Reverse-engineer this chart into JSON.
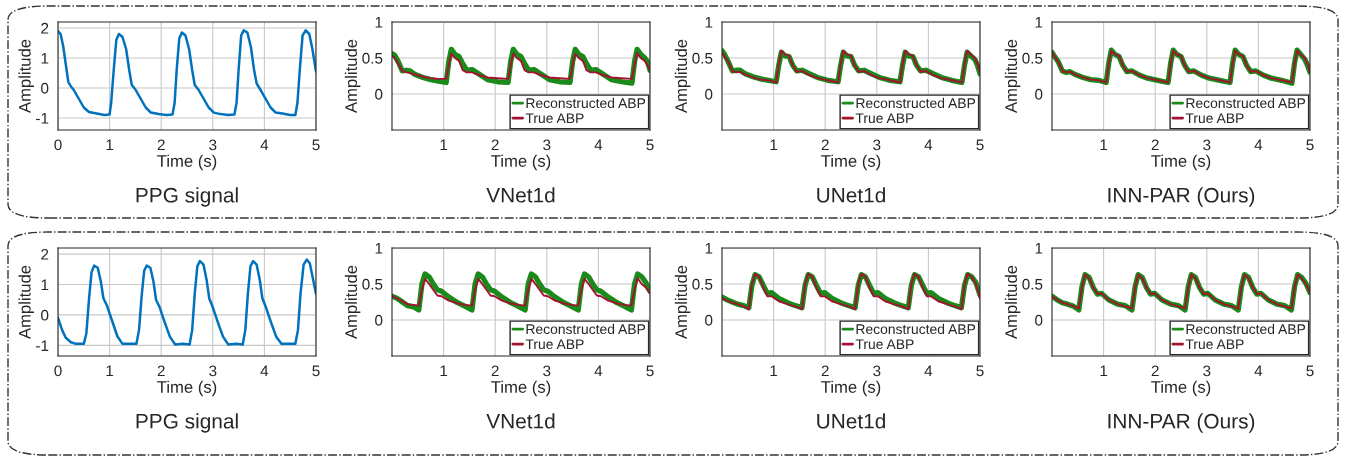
{
  "chart_data": [
    {
      "type": "line",
      "title": "PPG signal",
      "xlabel": "Time (s)",
      "ylabel": "Amplitude",
      "xlim": [
        0,
        5
      ],
      "ylim": [
        -1.4,
        2.2
      ],
      "xticks": [
        0,
        1,
        2,
        3,
        4,
        5
      ],
      "yticks": [
        -1,
        0,
        1,
        2
      ],
      "grid": true,
      "x": [
        0,
        0.05,
        0.1,
        0.15,
        0.2,
        0.25,
        0.3,
        0.4,
        0.5,
        0.6,
        0.75,
        0.9,
        1.0,
        1.03,
        1.08,
        1.13,
        1.18,
        1.25,
        1.32,
        1.38,
        1.43,
        1.5,
        1.6,
        1.7,
        1.8,
        1.95,
        2.1,
        2.22,
        2.26,
        2.3,
        2.35,
        2.4,
        2.47,
        2.54,
        2.6,
        2.65,
        2.72,
        2.82,
        2.92,
        3.02,
        3.15,
        3.3,
        3.42,
        3.46,
        3.5,
        3.55,
        3.6,
        3.67,
        3.74,
        3.8,
        3.85,
        3.92,
        4.02,
        4.12,
        4.22,
        4.35,
        4.5,
        4.6,
        4.64,
        4.69,
        4.74,
        4.8,
        4.87,
        4.93,
        5.0
      ],
      "series": [
        {
          "color": "#0072bd",
          "values": [
            1.9,
            1.8,
            1.4,
            0.8,
            0.2,
            0.05,
            -0.05,
            -0.35,
            -0.65,
            -0.8,
            -0.85,
            -0.9,
            -0.88,
            -0.5,
            0.6,
            1.6,
            1.8,
            1.7,
            1.3,
            0.6,
            0.1,
            -0.05,
            -0.35,
            -0.65,
            -0.82,
            -0.87,
            -0.9,
            -0.88,
            -0.5,
            0.6,
            1.65,
            1.85,
            1.75,
            1.3,
            0.6,
            0.1,
            -0.05,
            -0.35,
            -0.65,
            -0.82,
            -0.87,
            -0.9,
            -0.88,
            -0.5,
            0.6,
            1.75,
            1.92,
            1.85,
            1.35,
            0.6,
            0.15,
            -0.05,
            -0.35,
            -0.65,
            -0.82,
            -0.85,
            -0.9,
            -0.9,
            -0.5,
            0.7,
            1.75,
            1.92,
            1.8,
            1.3,
            0.55
          ]
        }
      ]
    },
    {
      "type": "line",
      "title": "VNet1d",
      "xlabel": "Time (s)",
      "ylabel": "Amplitude",
      "xlim": [
        0,
        5
      ],
      "ylim": [
        -0.5,
        1
      ],
      "xticks": [
        1,
        2,
        3,
        4,
        5
      ],
      "yticks": [
        0,
        0.5,
        1
      ],
      "grid": true,
      "legend": "bottom right",
      "x": [
        0,
        0.05,
        0.12,
        0.2,
        0.28,
        0.35,
        0.45,
        0.6,
        0.75,
        0.9,
        1.05,
        1.1,
        1.15,
        1.22,
        1.3,
        1.37,
        1.45,
        1.55,
        1.7,
        1.85,
        2.05,
        2.25,
        2.3,
        2.35,
        2.42,
        2.5,
        2.57,
        2.65,
        2.75,
        2.9,
        3.05,
        3.25,
        3.45,
        3.5,
        3.55,
        3.62,
        3.7,
        3.77,
        3.85,
        3.95,
        4.1,
        4.25,
        4.45,
        4.65,
        4.7,
        4.75,
        4.82,
        4.9,
        4.95,
        5.0
      ],
      "series": [
        {
          "name": "Reconstructed ABP",
          "color": "#1a8a1a",
          "values": [
            0.56,
            0.54,
            0.45,
            0.32,
            0.33,
            0.32,
            0.27,
            0.23,
            0.2,
            0.18,
            0.16,
            0.45,
            0.62,
            0.55,
            0.52,
            0.42,
            0.33,
            0.34,
            0.27,
            0.2,
            0.17,
            0.16,
            0.45,
            0.62,
            0.55,
            0.52,
            0.42,
            0.33,
            0.34,
            0.27,
            0.2,
            0.17,
            0.16,
            0.45,
            0.62,
            0.55,
            0.52,
            0.42,
            0.33,
            0.34,
            0.27,
            0.2,
            0.17,
            0.15,
            0.45,
            0.62,
            0.55,
            0.5,
            0.45,
            0.33
          ]
        },
        {
          "name": "True ABP",
          "color": "#a2142f",
          "values": [
            0.53,
            0.5,
            0.42,
            0.32,
            0.3,
            0.29,
            0.27,
            0.24,
            0.22,
            0.21,
            0.21,
            0.4,
            0.56,
            0.5,
            0.46,
            0.33,
            0.3,
            0.3,
            0.26,
            0.23,
            0.22,
            0.21,
            0.4,
            0.56,
            0.5,
            0.46,
            0.33,
            0.3,
            0.3,
            0.26,
            0.23,
            0.22,
            0.21,
            0.4,
            0.56,
            0.5,
            0.46,
            0.33,
            0.3,
            0.3,
            0.26,
            0.23,
            0.22,
            0.21,
            0.4,
            0.57,
            0.5,
            0.46,
            0.4,
            0.33
          ]
        }
      ]
    },
    {
      "type": "line",
      "title": "UNet1d",
      "xlabel": "Time (s)",
      "ylabel": "Amplitude",
      "xlim": [
        0,
        5
      ],
      "ylim": [
        -0.5,
        1
      ],
      "xticks": [
        1,
        2,
        3,
        4,
        5
      ],
      "yticks": [
        0,
        0.5,
        1
      ],
      "grid": true,
      "legend": "bottom right",
      "x": [
        0,
        0.05,
        0.12,
        0.2,
        0.28,
        0.35,
        0.45,
        0.6,
        0.75,
        0.9,
        1.05,
        1.1,
        1.15,
        1.22,
        1.3,
        1.37,
        1.45,
        1.55,
        1.7,
        1.85,
        2.05,
        2.25,
        2.3,
        2.35,
        2.42,
        2.5,
        2.57,
        2.65,
        2.75,
        2.9,
        3.05,
        3.25,
        3.45,
        3.5,
        3.55,
        3.62,
        3.7,
        3.77,
        3.85,
        3.95,
        4.1,
        4.25,
        4.45,
        4.65,
        4.7,
        4.75,
        4.82,
        4.9,
        4.95,
        5.0
      ],
      "series": [
        {
          "name": "Reconstructed ABP",
          "color": "#1a8a1a",
          "values": [
            0.6,
            0.55,
            0.45,
            0.32,
            0.33,
            0.33,
            0.28,
            0.24,
            0.21,
            0.19,
            0.17,
            0.4,
            0.58,
            0.53,
            0.52,
            0.4,
            0.32,
            0.33,
            0.28,
            0.23,
            0.19,
            0.17,
            0.4,
            0.58,
            0.53,
            0.52,
            0.4,
            0.32,
            0.33,
            0.28,
            0.23,
            0.19,
            0.17,
            0.4,
            0.58,
            0.53,
            0.52,
            0.4,
            0.32,
            0.33,
            0.28,
            0.23,
            0.19,
            0.16,
            0.4,
            0.58,
            0.53,
            0.48,
            0.4,
            0.28
          ]
        },
        {
          "name": "True ABP",
          "color": "#a2142f",
          "values": [
            0.58,
            0.52,
            0.45,
            0.32,
            0.3,
            0.31,
            0.27,
            0.23,
            0.2,
            0.19,
            0.16,
            0.42,
            0.6,
            0.55,
            0.53,
            0.4,
            0.31,
            0.32,
            0.26,
            0.22,
            0.19,
            0.16,
            0.42,
            0.6,
            0.55,
            0.53,
            0.4,
            0.31,
            0.32,
            0.26,
            0.22,
            0.19,
            0.16,
            0.42,
            0.6,
            0.55,
            0.53,
            0.4,
            0.31,
            0.32,
            0.26,
            0.22,
            0.19,
            0.16,
            0.42,
            0.6,
            0.55,
            0.5,
            0.42,
            0.3
          ]
        }
      ]
    },
    {
      "type": "line",
      "title": "INN-PAR (Ours)",
      "xlabel": "Time (s)",
      "ylabel": "Amplitude",
      "xlim": [
        0,
        5
      ],
      "ylim": [
        -0.5,
        1
      ],
      "xticks": [
        1,
        2,
        3,
        4,
        5
      ],
      "yticks": [
        0,
        0.5,
        1
      ],
      "grid": true,
      "legend": "bottom right",
      "x": [
        0,
        0.05,
        0.12,
        0.2,
        0.28,
        0.35,
        0.45,
        0.6,
        0.75,
        0.9,
        1.05,
        1.1,
        1.15,
        1.22,
        1.3,
        1.37,
        1.45,
        1.55,
        1.7,
        1.85,
        2.05,
        2.25,
        2.3,
        2.35,
        2.42,
        2.5,
        2.57,
        2.65,
        2.75,
        2.9,
        3.05,
        3.25,
        3.45,
        3.5,
        3.55,
        3.62,
        3.7,
        3.77,
        3.85,
        3.95,
        4.1,
        4.25,
        4.45,
        4.65,
        4.7,
        4.75,
        4.82,
        4.9,
        4.95,
        5.0
      ],
      "series": [
        {
          "name": "Reconstructed ABP",
          "color": "#1a8a1a",
          "values": [
            0.58,
            0.52,
            0.45,
            0.32,
            0.3,
            0.31,
            0.27,
            0.23,
            0.2,
            0.19,
            0.16,
            0.43,
            0.61,
            0.55,
            0.52,
            0.4,
            0.31,
            0.32,
            0.26,
            0.22,
            0.19,
            0.16,
            0.43,
            0.61,
            0.55,
            0.52,
            0.4,
            0.31,
            0.32,
            0.26,
            0.22,
            0.19,
            0.16,
            0.43,
            0.61,
            0.55,
            0.52,
            0.4,
            0.31,
            0.32,
            0.26,
            0.22,
            0.19,
            0.15,
            0.43,
            0.61,
            0.55,
            0.48,
            0.4,
            0.3
          ]
        },
        {
          "name": "True ABP",
          "color": "#a2142f",
          "values": [
            0.58,
            0.52,
            0.45,
            0.32,
            0.3,
            0.31,
            0.27,
            0.23,
            0.2,
            0.19,
            0.16,
            0.42,
            0.6,
            0.55,
            0.53,
            0.4,
            0.31,
            0.32,
            0.26,
            0.22,
            0.19,
            0.16,
            0.42,
            0.6,
            0.55,
            0.53,
            0.4,
            0.31,
            0.32,
            0.26,
            0.22,
            0.19,
            0.16,
            0.42,
            0.6,
            0.55,
            0.53,
            0.4,
            0.31,
            0.32,
            0.26,
            0.22,
            0.19,
            0.16,
            0.42,
            0.6,
            0.55,
            0.5,
            0.42,
            0.3
          ]
        }
      ]
    },
    {
      "type": "line",
      "title": "PPG signal",
      "xlabel": "Time (s)",
      "ylabel": "Amplitude",
      "xlim": [
        0,
        5
      ],
      "ylim": [
        -1.35,
        2.2
      ],
      "xticks": [
        0,
        1,
        2,
        3,
        4,
        5
      ],
      "yticks": [
        -1,
        0,
        1,
        2
      ],
      "grid": true,
      "x": [
        0,
        0.08,
        0.15,
        0.25,
        0.35,
        0.5,
        0.55,
        0.6,
        0.65,
        0.7,
        0.77,
        0.83,
        0.88,
        0.95,
        1.05,
        1.15,
        1.25,
        1.4,
        1.52,
        1.57,
        1.62,
        1.67,
        1.72,
        1.79,
        1.85,
        1.9,
        1.97,
        2.07,
        2.17,
        2.27,
        2.42,
        2.55,
        2.6,
        2.65,
        2.7,
        2.75,
        2.82,
        2.88,
        2.93,
        3.0,
        3.1,
        3.2,
        3.3,
        3.45,
        3.58,
        3.63,
        3.68,
        3.73,
        3.78,
        3.85,
        3.91,
        3.96,
        4.03,
        4.13,
        4.23,
        4.33,
        4.48,
        4.6,
        4.65,
        4.7,
        4.76,
        4.82,
        4.88,
        4.94,
        5.0
      ],
      "series": [
        {
          "color": "#0072bd",
          "values": [
            -0.1,
            -0.5,
            -0.75,
            -0.9,
            -0.95,
            -0.95,
            -0.6,
            0.5,
            1.4,
            1.62,
            1.55,
            1.1,
            0.55,
            0.3,
            -0.2,
            -0.7,
            -0.95,
            -0.95,
            -0.95,
            -0.5,
            0.6,
            1.45,
            1.62,
            1.55,
            1.1,
            0.5,
            0.25,
            -0.25,
            -0.72,
            -0.97,
            -0.95,
            -0.97,
            -0.5,
            0.7,
            1.6,
            1.77,
            1.65,
            1.15,
            0.55,
            0.25,
            -0.25,
            -0.72,
            -0.97,
            -0.95,
            -0.97,
            -0.5,
            0.7,
            1.6,
            1.77,
            1.65,
            1.15,
            0.55,
            0.25,
            -0.25,
            -0.72,
            -0.95,
            -0.95,
            -0.95,
            -0.5,
            0.7,
            1.65,
            1.82,
            1.7,
            1.2,
            0.7
          ]
        }
      ]
    },
    {
      "type": "line",
      "title": "VNet1d",
      "xlabel": "Time (s)",
      "ylabel": "Amplitude",
      "xlim": [
        0,
        5
      ],
      "ylim": [
        -0.5,
        1
      ],
      "xticks": [
        1,
        2,
        3,
        4,
        5
      ],
      "yticks": [
        0,
        0.5,
        1
      ],
      "grid": true,
      "legend": "bottom right",
      "x": [
        0,
        0.1,
        0.2,
        0.3,
        0.42,
        0.52,
        0.58,
        0.64,
        0.72,
        0.8,
        0.88,
        0.96,
        1.1,
        1.27,
        1.42,
        1.55,
        1.61,
        1.67,
        1.75,
        1.83,
        1.91,
        1.99,
        2.13,
        2.3,
        2.45,
        2.58,
        2.64,
        2.7,
        2.78,
        2.86,
        2.94,
        3.02,
        3.16,
        3.33,
        3.48,
        3.61,
        3.67,
        3.73,
        3.81,
        3.89,
        3.97,
        4.05,
        4.19,
        4.36,
        4.51,
        4.64,
        4.7,
        4.76,
        4.84,
        4.92,
        5.0
      ],
      "series": [
        {
          "name": "Reconstructed ABP",
          "color": "#1a8a1a",
          "values": [
            0.33,
            0.3,
            0.25,
            0.2,
            0.18,
            0.14,
            0.5,
            0.64,
            0.6,
            0.5,
            0.42,
            0.4,
            0.32,
            0.24,
            0.19,
            0.14,
            0.5,
            0.64,
            0.6,
            0.5,
            0.42,
            0.4,
            0.32,
            0.24,
            0.19,
            0.14,
            0.5,
            0.64,
            0.6,
            0.5,
            0.42,
            0.4,
            0.32,
            0.24,
            0.19,
            0.14,
            0.5,
            0.64,
            0.6,
            0.5,
            0.42,
            0.4,
            0.32,
            0.24,
            0.19,
            0.14,
            0.5,
            0.64,
            0.6,
            0.52,
            0.4
          ]
        },
        {
          "name": "True ABP",
          "color": "#a2142f",
          "values": [
            0.33,
            0.3,
            0.26,
            0.22,
            0.21,
            0.2,
            0.42,
            0.57,
            0.5,
            0.42,
            0.34,
            0.33,
            0.27,
            0.23,
            0.21,
            0.2,
            0.42,
            0.57,
            0.5,
            0.42,
            0.34,
            0.33,
            0.27,
            0.23,
            0.21,
            0.2,
            0.42,
            0.57,
            0.5,
            0.42,
            0.34,
            0.33,
            0.27,
            0.23,
            0.21,
            0.2,
            0.42,
            0.57,
            0.5,
            0.42,
            0.34,
            0.33,
            0.27,
            0.23,
            0.21,
            0.2,
            0.42,
            0.58,
            0.5,
            0.45,
            0.37
          ]
        }
      ]
    },
    {
      "type": "line",
      "title": "UNet1d",
      "xlabel": "Time (s)",
      "ylabel": "Amplitude",
      "xlim": [
        0,
        5
      ],
      "ylim": [
        -0.5,
        1
      ],
      "xticks": [
        1,
        2,
        3,
        4,
        5
      ],
      "yticks": [
        0,
        0.5,
        1
      ],
      "grid": true,
      "legend": "bottom right",
      "x": [
        0,
        0.1,
        0.2,
        0.3,
        0.42,
        0.52,
        0.58,
        0.64,
        0.72,
        0.8,
        0.88,
        0.96,
        1.1,
        1.27,
        1.42,
        1.55,
        1.61,
        1.67,
        1.75,
        1.83,
        1.91,
        1.99,
        2.13,
        2.3,
        2.45,
        2.58,
        2.64,
        2.7,
        2.78,
        2.86,
        2.94,
        3.02,
        3.16,
        3.33,
        3.48,
        3.61,
        3.67,
        3.73,
        3.81,
        3.89,
        3.97,
        4.05,
        4.19,
        4.36,
        4.51,
        4.64,
        4.7,
        4.76,
        4.84,
        4.92,
        5.0
      ],
      "series": [
        {
          "name": "Reconstructed ABP",
          "color": "#1a8a1a",
          "values": [
            0.32,
            0.28,
            0.25,
            0.22,
            0.2,
            0.17,
            0.48,
            0.63,
            0.6,
            0.48,
            0.37,
            0.38,
            0.3,
            0.24,
            0.2,
            0.17,
            0.48,
            0.63,
            0.6,
            0.48,
            0.37,
            0.38,
            0.3,
            0.24,
            0.2,
            0.17,
            0.48,
            0.63,
            0.6,
            0.48,
            0.37,
            0.38,
            0.3,
            0.24,
            0.2,
            0.17,
            0.48,
            0.63,
            0.6,
            0.48,
            0.37,
            0.38,
            0.3,
            0.24,
            0.2,
            0.17,
            0.48,
            0.63,
            0.6,
            0.52,
            0.35
          ]
        },
        {
          "name": "True ABP",
          "color": "#a2142f",
          "values": [
            0.3,
            0.27,
            0.24,
            0.22,
            0.19,
            0.15,
            0.5,
            0.64,
            0.6,
            0.45,
            0.33,
            0.33,
            0.26,
            0.22,
            0.19,
            0.15,
            0.5,
            0.64,
            0.6,
            0.45,
            0.33,
            0.33,
            0.26,
            0.22,
            0.19,
            0.15,
            0.5,
            0.64,
            0.6,
            0.45,
            0.33,
            0.33,
            0.26,
            0.22,
            0.19,
            0.15,
            0.5,
            0.64,
            0.6,
            0.45,
            0.33,
            0.33,
            0.26,
            0.22,
            0.19,
            0.15,
            0.5,
            0.64,
            0.6,
            0.5,
            0.3
          ]
        }
      ]
    },
    {
      "type": "line",
      "title": "INN-PAR (Ours)",
      "xlabel": "Time (s)",
      "ylabel": "Amplitude",
      "xlim": [
        0,
        5
      ],
      "ylim": [
        -0.5,
        1
      ],
      "xticks": [
        1,
        2,
        3,
        4,
        5
      ],
      "yticks": [
        0,
        0.5,
        1
      ],
      "grid": true,
      "legend": "bottom right",
      "x": [
        0,
        0.1,
        0.2,
        0.3,
        0.42,
        0.52,
        0.58,
        0.64,
        0.72,
        0.8,
        0.88,
        0.96,
        1.1,
        1.27,
        1.42,
        1.55,
        1.61,
        1.67,
        1.75,
        1.83,
        1.91,
        1.99,
        2.13,
        2.3,
        2.45,
        2.58,
        2.64,
        2.7,
        2.78,
        2.86,
        2.94,
        3.02,
        3.16,
        3.33,
        3.48,
        3.61,
        3.67,
        3.73,
        3.81,
        3.89,
        3.97,
        4.05,
        4.19,
        4.36,
        4.51,
        4.64,
        4.7,
        4.76,
        4.84,
        4.92,
        5.0
      ],
      "series": [
        {
          "name": "Reconstructed ABP",
          "color": "#1a8a1a",
          "values": [
            0.33,
            0.28,
            0.24,
            0.22,
            0.19,
            0.14,
            0.46,
            0.63,
            0.59,
            0.45,
            0.36,
            0.37,
            0.28,
            0.22,
            0.2,
            0.14,
            0.46,
            0.63,
            0.59,
            0.45,
            0.36,
            0.37,
            0.28,
            0.22,
            0.2,
            0.14,
            0.46,
            0.63,
            0.59,
            0.45,
            0.36,
            0.37,
            0.28,
            0.22,
            0.2,
            0.14,
            0.46,
            0.63,
            0.59,
            0.45,
            0.36,
            0.37,
            0.28,
            0.22,
            0.2,
            0.14,
            0.46,
            0.63,
            0.59,
            0.51,
            0.38
          ]
        },
        {
          "name": "True ABP",
          "color": "#a2142f",
          "values": [
            0.33,
            0.28,
            0.24,
            0.22,
            0.19,
            0.16,
            0.45,
            0.63,
            0.58,
            0.45,
            0.36,
            0.37,
            0.28,
            0.22,
            0.19,
            0.16,
            0.45,
            0.63,
            0.58,
            0.45,
            0.36,
            0.37,
            0.28,
            0.22,
            0.19,
            0.16,
            0.45,
            0.63,
            0.58,
            0.45,
            0.36,
            0.37,
            0.28,
            0.22,
            0.19,
            0.16,
            0.45,
            0.63,
            0.58,
            0.45,
            0.36,
            0.37,
            0.28,
            0.22,
            0.19,
            0.16,
            0.45,
            0.63,
            0.58,
            0.5,
            0.38
          ]
        }
      ]
    }
  ]
}
